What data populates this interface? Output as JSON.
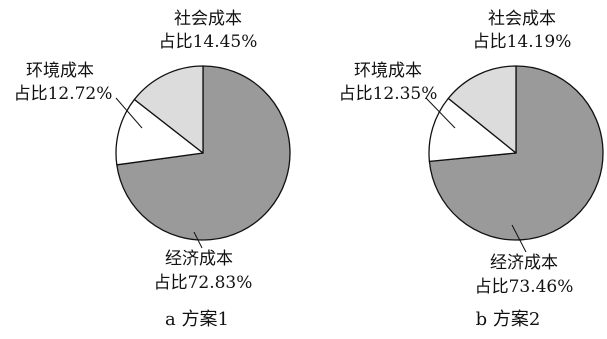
{
  "chart_data": [
    {
      "type": "pie",
      "caption": "a 方案1",
      "slices": [
        {
          "name": "经济成本",
          "label": "占比72.83%",
          "value": 72.83,
          "color": "#9a9a9a"
        },
        {
          "name": "环境成本",
          "label": "占比12.72%",
          "value": 12.72,
          "color": "#ffffff"
        },
        {
          "name": "社会成本",
          "label": "占比14.45%",
          "value": 14.45,
          "color": "#dcdcdc"
        }
      ]
    },
    {
      "type": "pie",
      "caption": "b 方案2",
      "slices": [
        {
          "name": "经济成本",
          "label": "占比73.46%",
          "value": 73.46,
          "color": "#9a9a9a"
        },
        {
          "name": "环境成本",
          "label": "占比12.35%",
          "value": 12.35,
          "color": "#ffffff"
        },
        {
          "name": "社会成本",
          "label": "占比14.19%",
          "value": 14.19,
          "color": "#dcdcdc"
        }
      ]
    }
  ]
}
